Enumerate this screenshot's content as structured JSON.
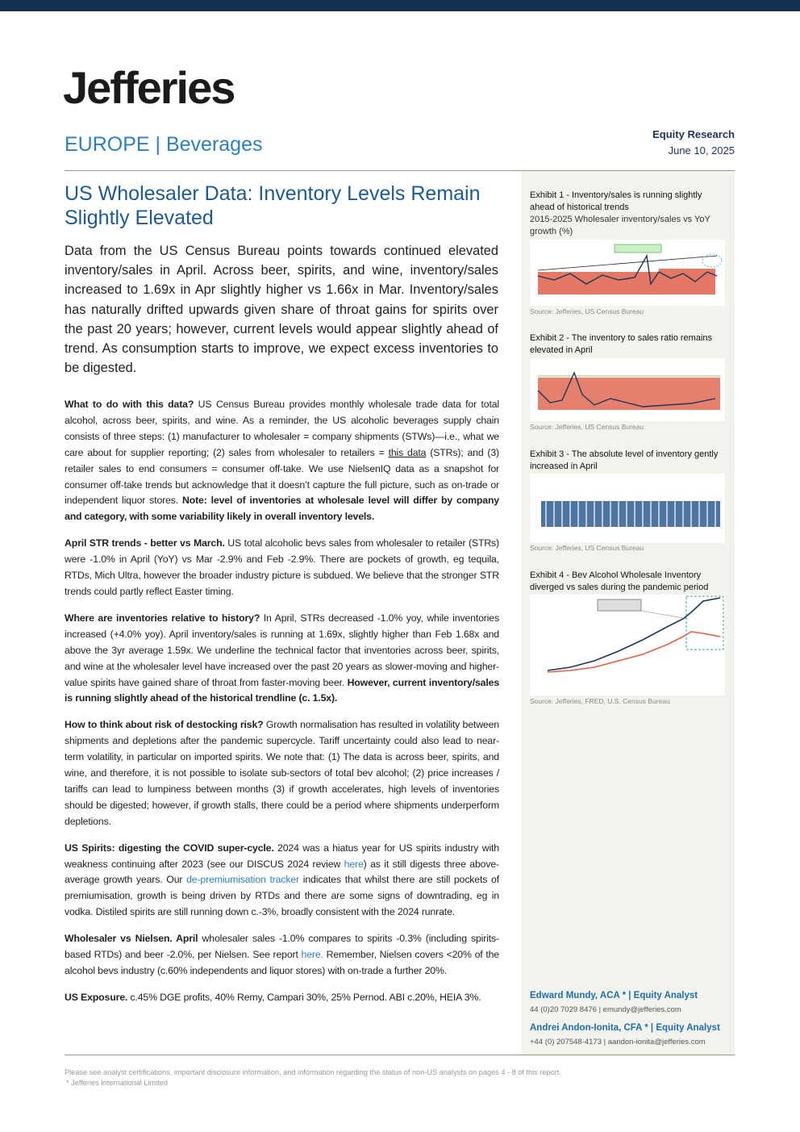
{
  "header": {
    "logo": "Jefferies",
    "region": "EUROPE | Beverages",
    "label": "Equity Research",
    "date": "June 10, 2025"
  },
  "title": "US Wholesaler Data: Inventory Levels Remain Slightly Elevated",
  "summary": "Data from the US Census Bureau points towards continued elevated inventory/sales in April. Across beer, spirits, and wine, inventory/sales increased to 1.69x in Apr slightly higher vs 1.66x in Mar. Inventory/sales has naturally drifted upwards given share of throat gains for spirits over the past 20 years; however, current levels would appear slightly ahead of trend. As consumption starts to improve, we expect excess inventories to be digested.",
  "paragraphs": [
    [
      {
        "text": "What to do with this data?",
        "style": "bold"
      },
      {
        "text": " US Census Bureau provides monthly wholesale trade data for total alcohol, across beer, spirits, and wine. As a reminder, the US alcoholic beverages supply chain consists of three steps: (1) manufacturer to wholesaler = company shipments (STWs)—i.e., what we care about for supplier reporting; (2) sales from wholesaler to retailers = "
      },
      {
        "text": "this data",
        "style": "underline"
      },
      {
        "text": " (STRs); and (3) retailer sales to end consumers = consumer off-take. We use NielsenIQ data as a snapshot for consumer off-take trends but acknowledge that it doesn’t capture the full picture, such as on-trade or independent liquor stores. "
      },
      {
        "text": "Note: level of inventories at wholesale level will differ by company and category, with some variability likely in overall inventory levels.",
        "style": "bold"
      }
    ],
    [
      {
        "text": "April STR trends - better vs March.",
        "style": "bold"
      },
      {
        "text": " US total alcoholic bevs sales from wholesaler to retailer (STRs) were -1.0% in April (YoY) vs Mar -2.9% and Feb -2.9%. There are pockets of growth, eg tequila, RTDs, Mich Ultra, however the broader industry picture is subdued. We believe that the stronger STR trends could partly reflect Easter timing."
      }
    ],
    [
      {
        "text": "Where are inventories relative to history?",
        "style": "bold"
      },
      {
        "text": " In April, STRs decreased -1.0% yoy, while inventories increased (+4.0% yoy). April inventory/sales is running at 1.69x, slightly higher than Feb 1.68x and above the 3yr average 1.59x. We underline the technical factor that inventories across beer, spirits, and wine at the wholesaler level have increased over the past 20 years as slower-moving and higher-value spirits have gained share of throat from faster-moving beer. "
      },
      {
        "text": "However, current inventory/sales is running slightly ahead of the historical trendline (c. 1.5x).",
        "style": "bold"
      }
    ],
    [
      {
        "text": "How to think about risk of destocking risk?",
        "style": "bold"
      },
      {
        "text": " Growth normalisation has resulted in volatility between shipments and depletions after the pandemic supercycle. Tariff uncertainty could also lead to near-term volatility, in particular on imported spirits. We note that: (1) The data is across beer, spirits, and wine, and therefore, it is not possible to isolate sub-sectors of total bev alcohol; (2) price increases / tariffs can lead to lumpiness between months (3) if growth accelerates, high levels of inventories should be digested; however, if growth stalls, there could be a period where shipments underperform depletions."
      }
    ],
    [
      {
        "text": "US Spirits: digesting the COVID super-cycle.",
        "style": "bold"
      },
      {
        "text": " 2024 was a hiatus year for US spirits industry with weakness continuing after 2023 (see our DISCUS 2024 review "
      },
      {
        "text": "here",
        "style": "link"
      },
      {
        "text": ") as it still digests three above-average growth years. Our "
      },
      {
        "text": "de-premiumisation tracker",
        "style": "link"
      },
      {
        "text": " indicates that whilst there are still pockets of premiumisation, growth is being driven by RTDs and there are some signs of downtrading, eg in vodka. Distiled spirits are still running down c.-3%, broadly consistent with the 2024 runrate."
      }
    ],
    [
      {
        "text": "Wholesaler vs Nielsen. April",
        "style": "bold"
      },
      {
        "text": " wholesaler sales -1.0% compares to spirits -0.3% (including spirits-based RTDs) and beer -2.0%, per Nielsen. See report "
      },
      {
        "text": "here.",
        "style": "link"
      },
      {
        "text": " Remember, Nielsen covers <20% of the alcohol bevs industry (c.60% independents and liquor stores) with on-trade a further 20%."
      }
    ],
    [
      {
        "text": "US Exposure.",
        "style": "bold"
      },
      {
        "text": " c.45% DGE profits, 40% Remy, Campari 30%, 25% Pernod. ABI c.20%, HEIA 3%."
      }
    ]
  ],
  "exhibits": [
    {
      "title": "Exhibit 1 - Inventory/sales is running slightly ahead of historical trends",
      "subtitle": "2015-2025 Wholesaler inventory/sales vs YoY growth (%)",
      "source": "Source: Jefferies, US Census Bureau"
    },
    {
      "title": "Exhibit 2 - The inventory to sales ratio remains elevated in April",
      "source": "Source: Jefferies, US Census Bureau"
    },
    {
      "title": "Exhibit 3 - The absolute level of inventory gently increased in April",
      "source": "Source: Jefferies, US Census Bureau"
    },
    {
      "title": "Exhibit 4 - Bev Alcohol Wholesale Inventory diverged vs sales during the pandemic period",
      "source": "Source: Jefferies, FRED, U.S. Census Bureau"
    }
  ],
  "analysts": [
    {
      "name": "Edward Mundy, ACA *  | Equity Analyst",
      "contact": "44 (0)20 7029 8476 | emundy@jefferies.com"
    },
    {
      "name": "Andrei Andon-Ionita, CFA *  | Equity Analyst",
      "contact": "+44 (0) 207548-4173 | aandon-ionita@jefferies.com"
    }
  ],
  "footer": {
    "disclaimer": "Please see analyst certifications, important disclosure information, and information regarding the status of non-US analysts on pages  4 - 8 of this report.",
    "note": "* Jefferies International Limited"
  }
}
